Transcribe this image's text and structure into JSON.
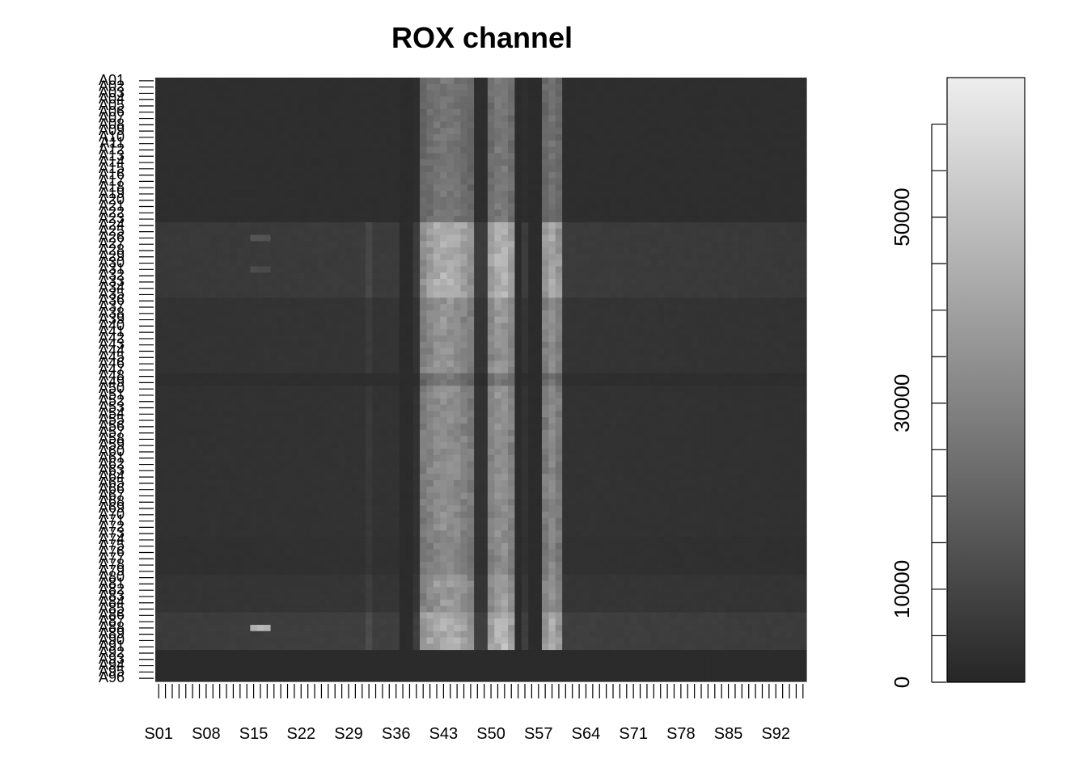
{
  "chart_data": {
    "type": "heatmap",
    "title": "ROX channel",
    "xlabel": "",
    "ylabel": "",
    "x_tick_labels": [
      "S01",
      "S08",
      "S15",
      "S22",
      "S29",
      "S36",
      "S43",
      "S50",
      "S57",
      "S64",
      "S71",
      "S78",
      "S85",
      "S92"
    ],
    "x_tick_label_indices": [
      1,
      8,
      15,
      22,
      29,
      36,
      43,
      50,
      57,
      64,
      71,
      78,
      85,
      92
    ],
    "n_columns": 96,
    "n_rows": 96,
    "row_label_prefix": "A",
    "colorbar": {
      "range": [
        0,
        65000
      ],
      "tick_labels": [
        "0",
        "10000",
        "30000",
        "50000"
      ],
      "tick_values": [
        0,
        5000,
        10000,
        15000,
        20000,
        25000,
        30000,
        35000,
        40000,
        45000,
        50000,
        55000,
        60000
      ],
      "labeled_values": [
        0,
        10000,
        30000,
        50000
      ],
      "low_color": "#262626",
      "high_color": "#eeeeee"
    },
    "structure": {
      "background_value": 2500,
      "bright_column_bands": [
        {
          "columns": [
            40,
            47
          ],
          "peak_value": 48000
        },
        {
          "columns": [
            50,
            53
          ],
          "peak_value": 50000
        },
        {
          "columns": [
            58,
            60
          ],
          "peak_value": 45000
        }
      ],
      "dark_columns": [
        37,
        38,
        54,
        56,
        57
      ],
      "minor_bright_column": {
        "column": 32,
        "peak_value": 12000
      },
      "bright_row_groups": [
        {
          "rows": [
            24,
            29
          ],
          "value": 7000
        },
        {
          "rows": [
            30,
            35
          ],
          "value": 7000
        },
        {
          "rows": [
            36,
            41
          ],
          "value": 4500
        },
        {
          "rows": [
            42,
            47
          ],
          "value": 4500
        },
        {
          "rows": [
            50,
            55
          ],
          "value": 4000
        },
        {
          "rows": [
            56,
            61
          ],
          "value": 4000
        },
        {
          "rows": [
            62,
            67
          ],
          "value": 4000
        },
        {
          "rows": [
            68,
            73
          ],
          "value": 4000
        },
        {
          "rows": [
            74,
            79
          ],
          "value": 3500
        },
        {
          "rows": [
            80,
            85
          ],
          "value": 5000
        },
        {
          "rows": [
            86,
            91
          ],
          "value": 8000
        }
      ],
      "dark_rows": [
        92,
        93,
        94,
        95,
        96
      ],
      "hotspots": [
        {
          "row": 88,
          "columns": [
            15,
            17
          ],
          "value": 45000
        },
        {
          "row": 26,
          "columns": [
            15,
            17
          ],
          "value": 15000
        },
        {
          "row": 31,
          "columns": [
            15,
            17
          ],
          "value": 12000
        }
      ]
    }
  }
}
